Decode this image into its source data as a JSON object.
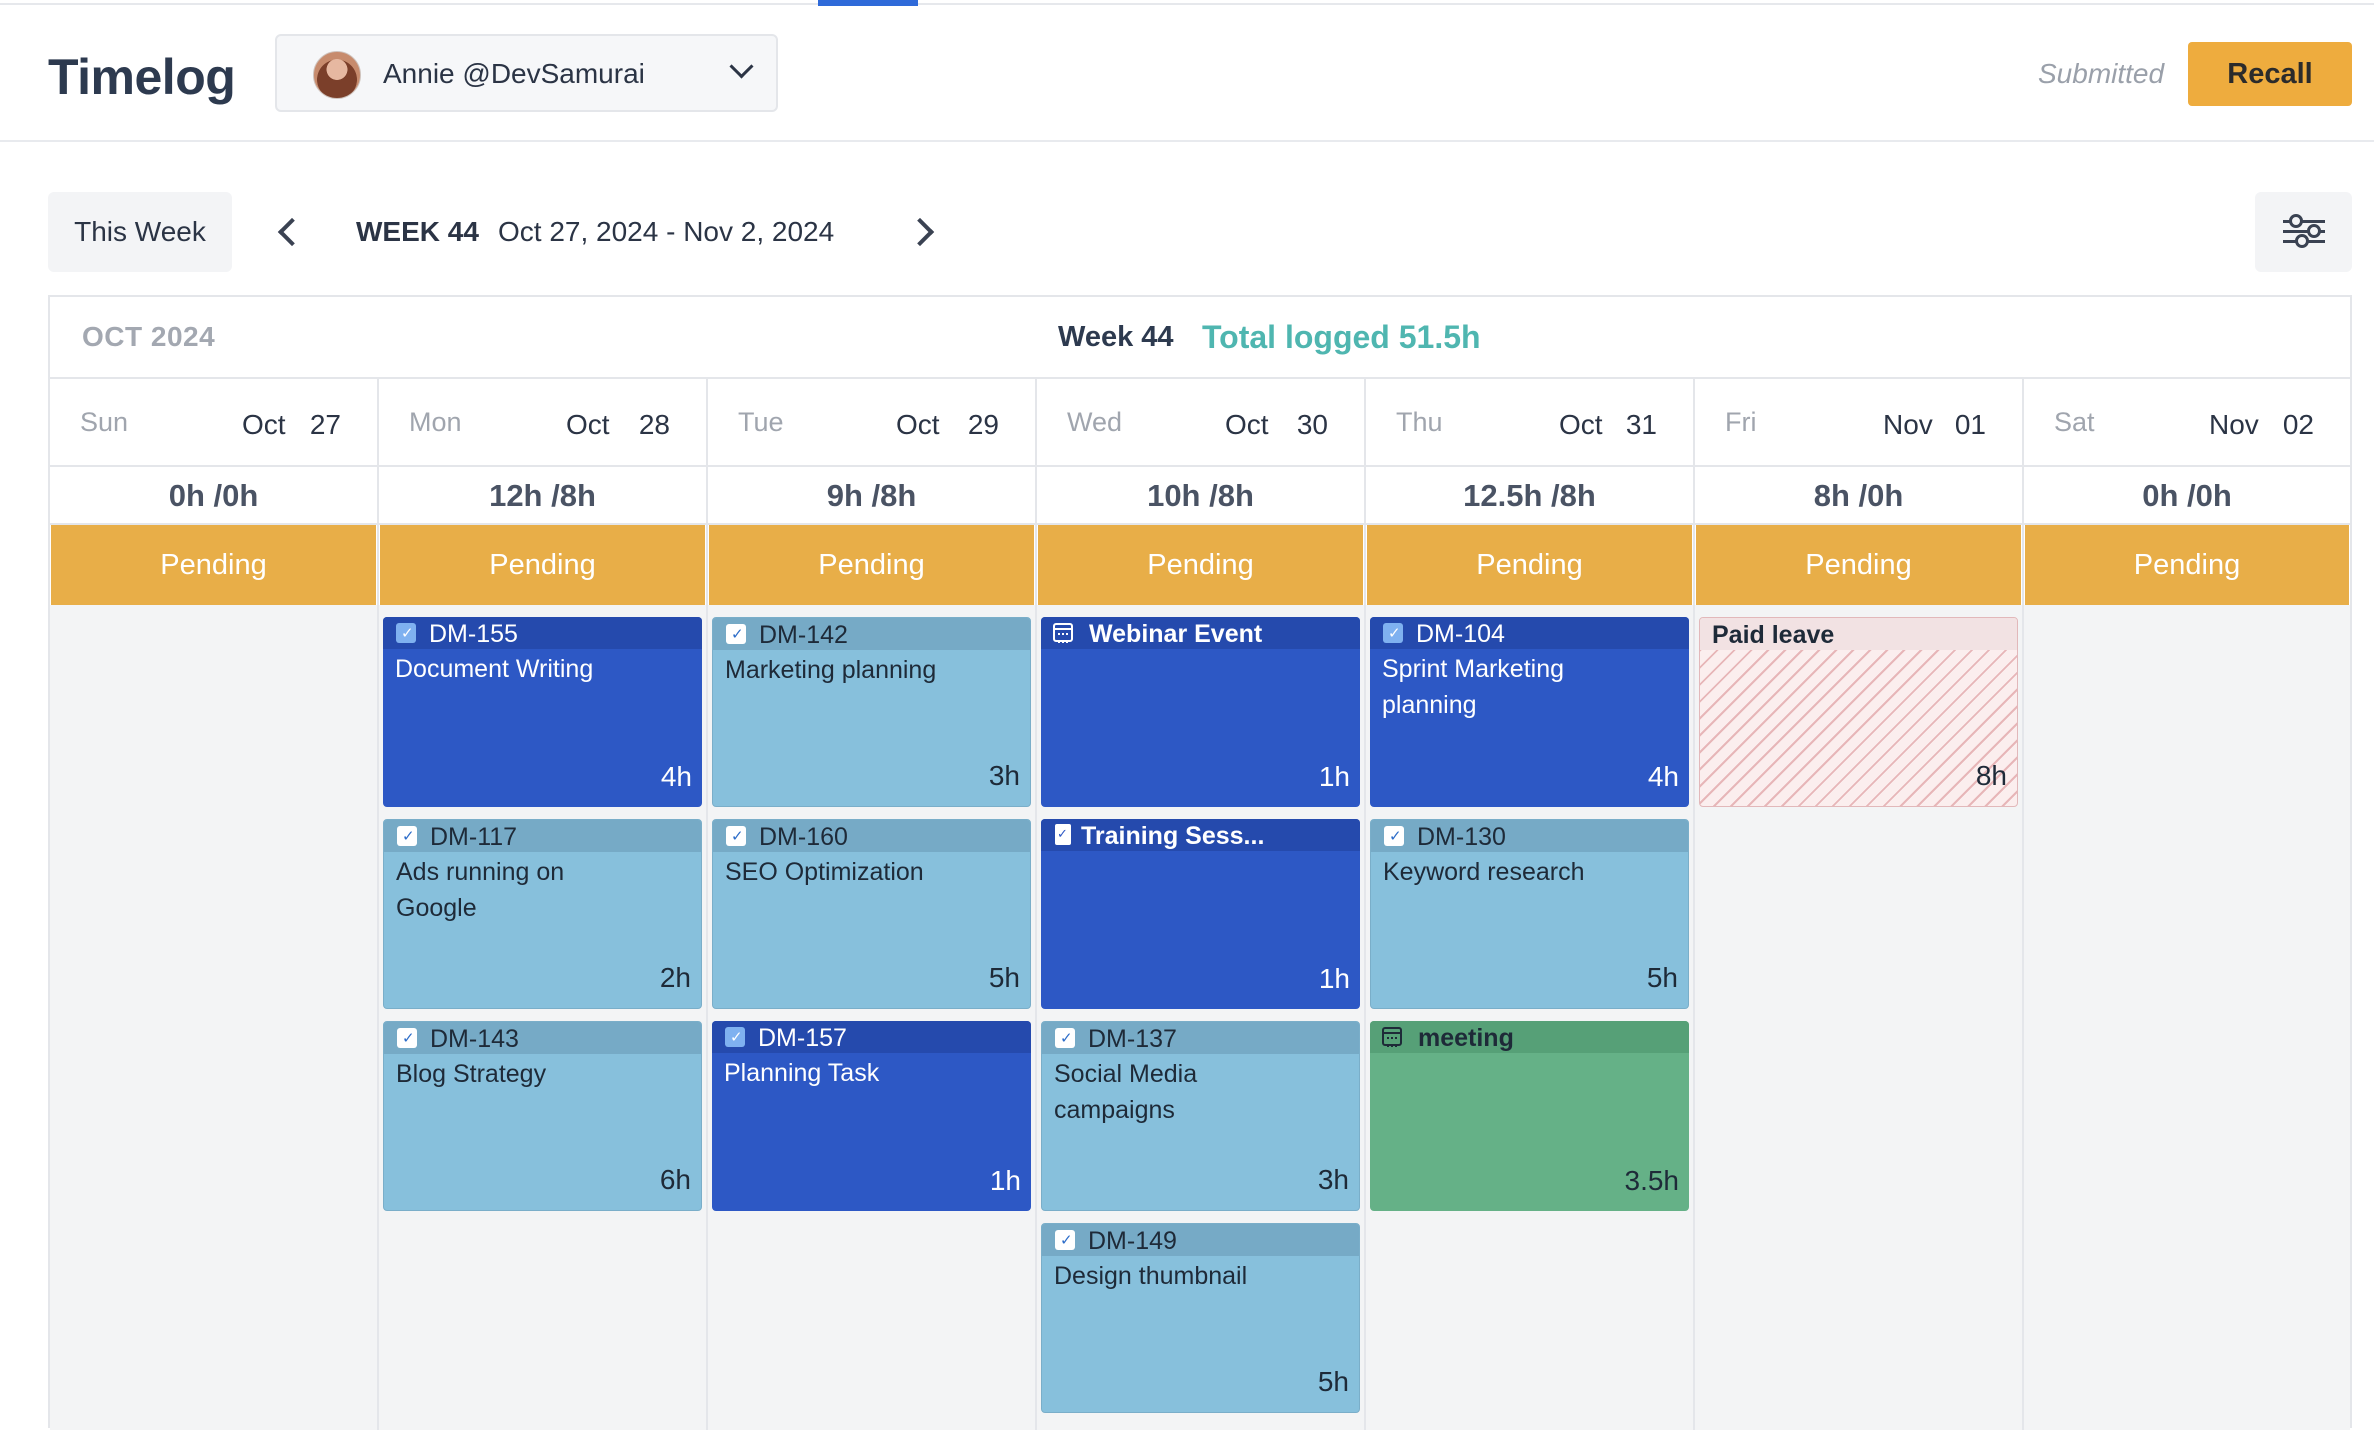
{
  "app": {
    "title": "Timelog"
  },
  "user_select": {
    "name": "Annie @DevSamurai"
  },
  "header": {
    "status": "Submitted",
    "recall_label": "Recall"
  },
  "toolbar": {
    "this_week": "This Week",
    "week_label": "WEEK 44",
    "week_range": "Oct 27, 2024 - Nov 2, 2024"
  },
  "calendar": {
    "month": "OCT 2024",
    "week": "Week 44",
    "total": "Total logged 51.5h",
    "days": [
      {
        "dow": "Sun",
        "month": "Oct",
        "day": "27",
        "hours": "0h /0h",
        "status": "Pending"
      },
      {
        "dow": "Mon",
        "month": "Oct",
        "day": "28",
        "hours": "12h /8h",
        "status": "Pending"
      },
      {
        "dow": "Tue",
        "month": "Oct",
        "day": "29",
        "hours": "9h /8h",
        "status": "Pending"
      },
      {
        "dow": "Wed",
        "month": "Oct",
        "day": "30",
        "hours": "10h /8h",
        "status": "Pending"
      },
      {
        "dow": "Thu",
        "month": "Oct",
        "day": "31",
        "hours": "12.5h /8h",
        "status": "Pending"
      },
      {
        "dow": "Fri",
        "month": "Nov",
        "day": "01",
        "hours": "8h /0h",
        "status": "Pending"
      },
      {
        "dow": "Sat",
        "month": "Nov",
        "day": "02",
        "hours": "0h /0h",
        "status": "Pending"
      }
    ],
    "entries": {
      "mon": [
        {
          "key": "DM-155",
          "name": "Document Writing",
          "dur": "4h"
        },
        {
          "key": "DM-117",
          "name": "Ads running on Google",
          "dur": "2h"
        },
        {
          "key": "DM-143",
          "name": "Blog Strategy",
          "dur": "6h"
        }
      ],
      "tue": [
        {
          "key": "DM-142",
          "name": "Marketing planning",
          "dur": "3h"
        },
        {
          "key": "DM-160",
          "name": "SEO Optimization",
          "dur": "5h"
        },
        {
          "key": "DM-157",
          "name": "Planning Task",
          "dur": "1h"
        }
      ],
      "wed": [
        {
          "key": "Webinar Event",
          "name": "",
          "dur": "1h"
        },
        {
          "key": "Training Sess...",
          "name": "",
          "dur": "1h"
        },
        {
          "key": "DM-137",
          "name": "Social Media campaigns",
          "dur": "3h"
        },
        {
          "key": "DM-149",
          "name": "Design thumbnail",
          "dur": "5h"
        }
      ],
      "thu": [
        {
          "key": "DM-104",
          "name": "Sprint Marketing planning",
          "dur": "4h"
        },
        {
          "key": "DM-130",
          "name": "Keyword research",
          "dur": "5h"
        },
        {
          "key": "meeting",
          "name": "",
          "dur": "3.5h"
        }
      ],
      "fri": [
        {
          "key": "Paid leave",
          "name": "",
          "dur": "8h"
        }
      ]
    }
  },
  "colors": {
    "accent": "#2f6ad9",
    "pending": "#e8ae48",
    "recall": "#eeac3e",
    "total": "#4fb6b0",
    "dark_card": "#2d58c5",
    "light_card": "#87c0dc",
    "meeting": "#65b187"
  }
}
